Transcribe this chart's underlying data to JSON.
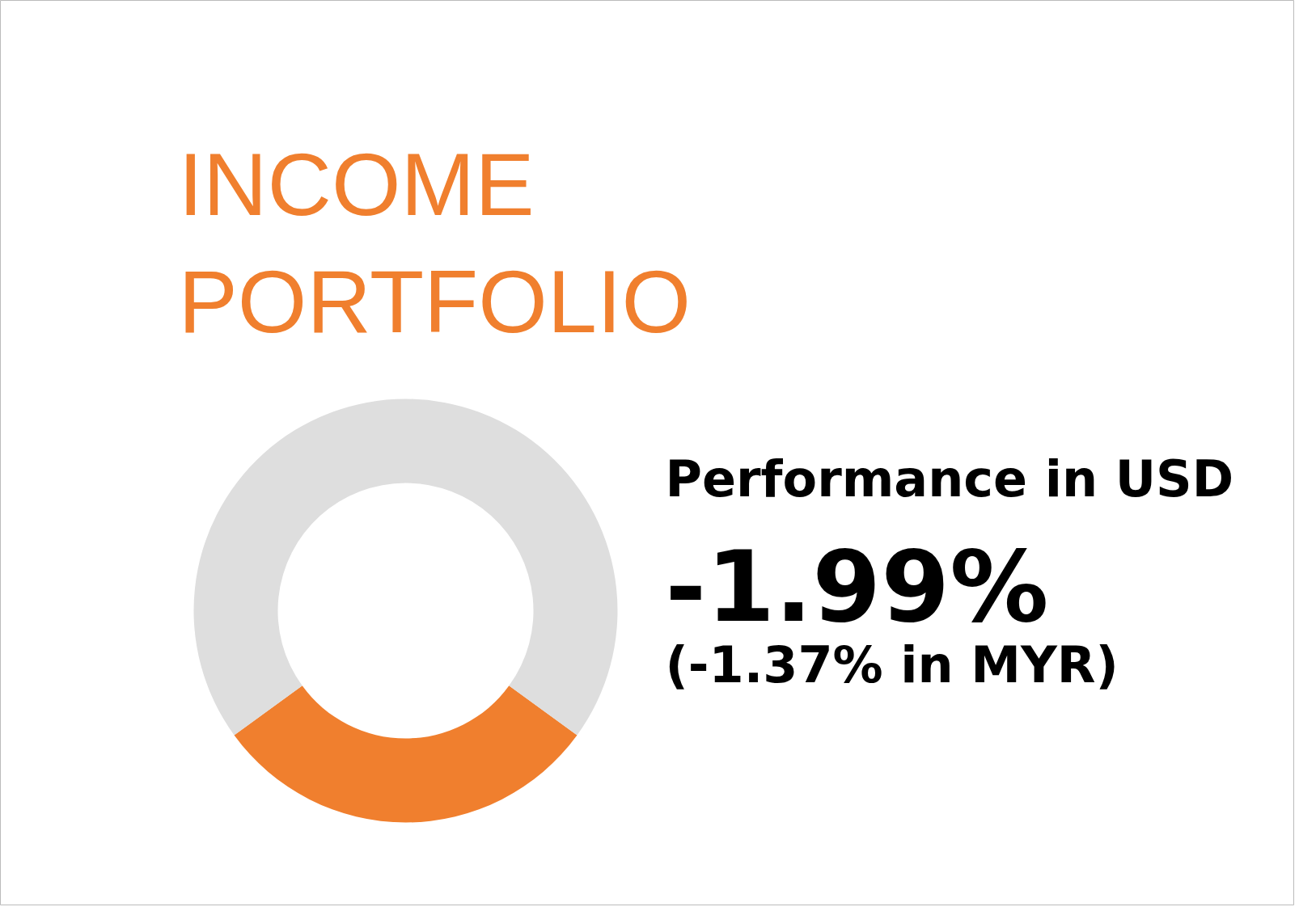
{
  "chart_data": {
    "type": "donut",
    "title": "INCOME\nPORTFOLIO",
    "categories": [
      null,
      null
    ],
    "values": [
      30,
      70
    ],
    "colors": [
      "#f07f2e",
      "#dedede"
    ],
    "annotations": [
      "Performance in USD",
      "-1.99%",
      "(-1.37% in MYR)"
    ]
  }
}
